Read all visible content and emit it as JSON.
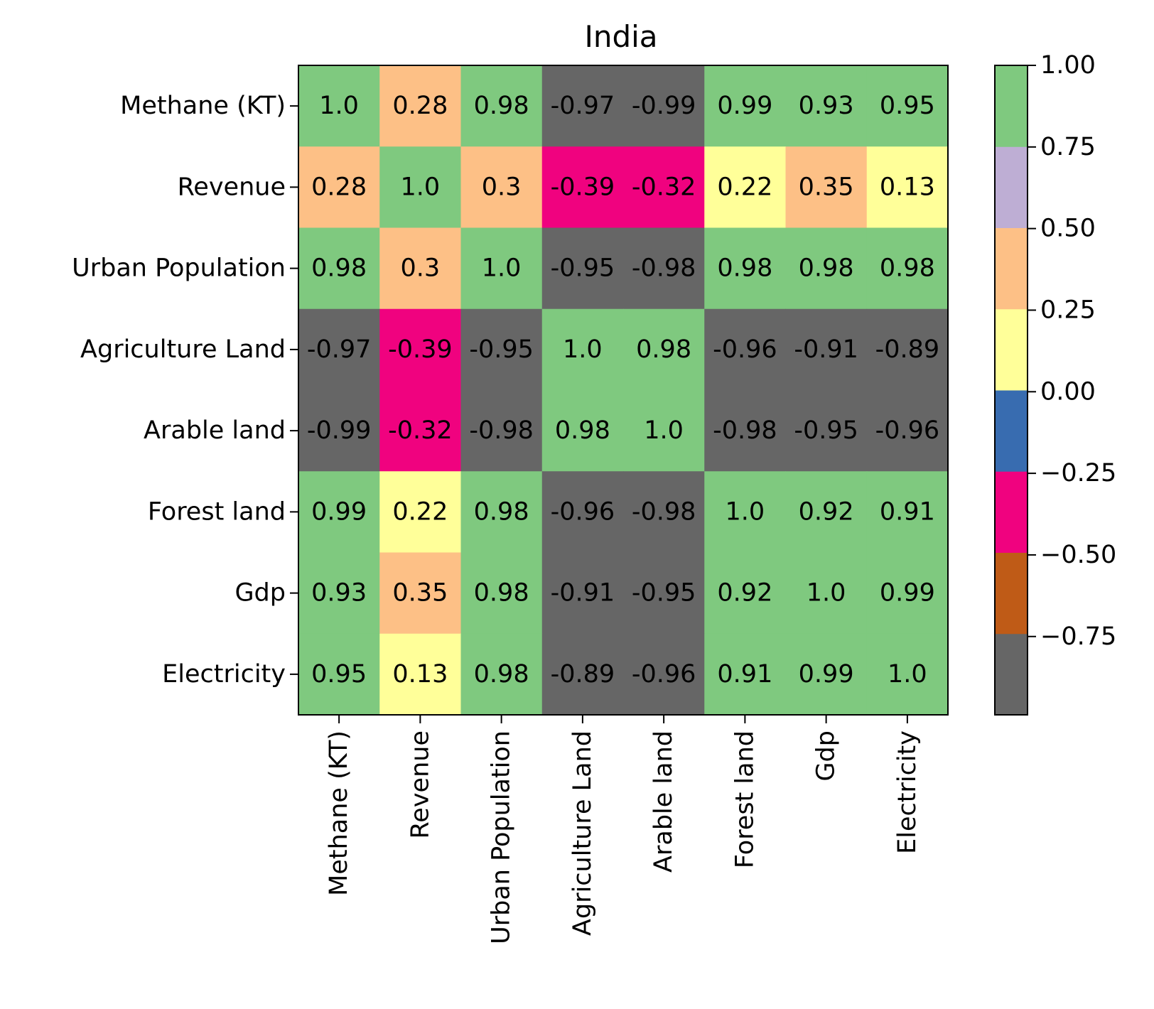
{
  "chart_data": {
    "type": "heatmap",
    "title": "India",
    "xlabel": "",
    "ylabel": "",
    "categories": [
      "Methane (KT)",
      "Revenue",
      "Urban Population",
      "Agriculture Land",
      "Arable land",
      "Forest land",
      "Gdp",
      "Electricity"
    ],
    "values": [
      [
        1.0,
        0.28,
        0.98,
        -0.97,
        -0.99,
        0.99,
        0.93,
        0.95
      ],
      [
        0.28,
        1.0,
        0.3,
        -0.39,
        -0.32,
        0.22,
        0.35,
        0.13
      ],
      [
        0.98,
        0.3,
        1.0,
        -0.95,
        -0.98,
        0.98,
        0.98,
        0.98
      ],
      [
        -0.97,
        -0.39,
        -0.95,
        1.0,
        0.98,
        -0.96,
        -0.91,
        -0.89
      ],
      [
        -0.99,
        -0.32,
        -0.98,
        0.98,
        1.0,
        -0.98,
        -0.95,
        -0.96
      ],
      [
        0.99,
        0.22,
        0.98,
        -0.96,
        -0.98,
        1.0,
        0.92,
        0.91
      ],
      [
        0.93,
        0.35,
        0.98,
        -0.91,
        -0.95,
        0.92,
        1.0,
        0.99
      ],
      [
        0.95,
        0.13,
        0.98,
        -0.89,
        -0.96,
        0.91,
        0.99,
        1.0
      ]
    ],
    "cell_labels": [
      [
        "1.0",
        "0.28",
        "0.98",
        "-0.97",
        "-0.99",
        "0.99",
        "0.93",
        "0.95"
      ],
      [
        "0.28",
        "1.0",
        "0.3",
        "-0.39",
        "-0.32",
        "0.22",
        "0.35",
        "0.13"
      ],
      [
        "0.98",
        "0.3",
        "1.0",
        "-0.95",
        "-0.98",
        "0.98",
        "0.98",
        "0.98"
      ],
      [
        "-0.97",
        "-0.39",
        "-0.95",
        "1.0",
        "0.98",
        "-0.96",
        "-0.91",
        "-0.89"
      ],
      [
        "-0.99",
        "-0.32",
        "-0.98",
        "0.98",
        "1.0",
        "-0.98",
        "-0.95",
        "-0.96"
      ],
      [
        "0.99",
        "0.22",
        "0.98",
        "-0.96",
        "-0.98",
        "1.0",
        "0.92",
        "0.91"
      ],
      [
        "0.93",
        "0.35",
        "0.98",
        "-0.91",
        "-0.95",
        "0.92",
        "1.0",
        "0.99"
      ],
      [
        "0.95",
        "0.13",
        "0.98",
        "-0.89",
        "-0.96",
        "0.91",
        "0.99",
        "1.0"
      ]
    ],
    "colorbar": {
      "range": [
        -0.99,
        1.0
      ],
      "ticks": [
        -0.75,
        -0.5,
        -0.25,
        0.0,
        0.25,
        0.5,
        0.75,
        1.0
      ],
      "tick_labels": [
        "−0.75",
        "−0.50",
        "−0.25",
        "0.00",
        "0.25",
        "0.50",
        "0.75",
        "1.00"
      ],
      "colormap": "Accent",
      "colors": [
        "#666666",
        "#bf5b17",
        "#f0027f",
        "#386cb0",
        "#ffff99",
        "#fdc086",
        "#beaed4",
        "#7fc97f"
      ]
    },
    "grid": false
  }
}
